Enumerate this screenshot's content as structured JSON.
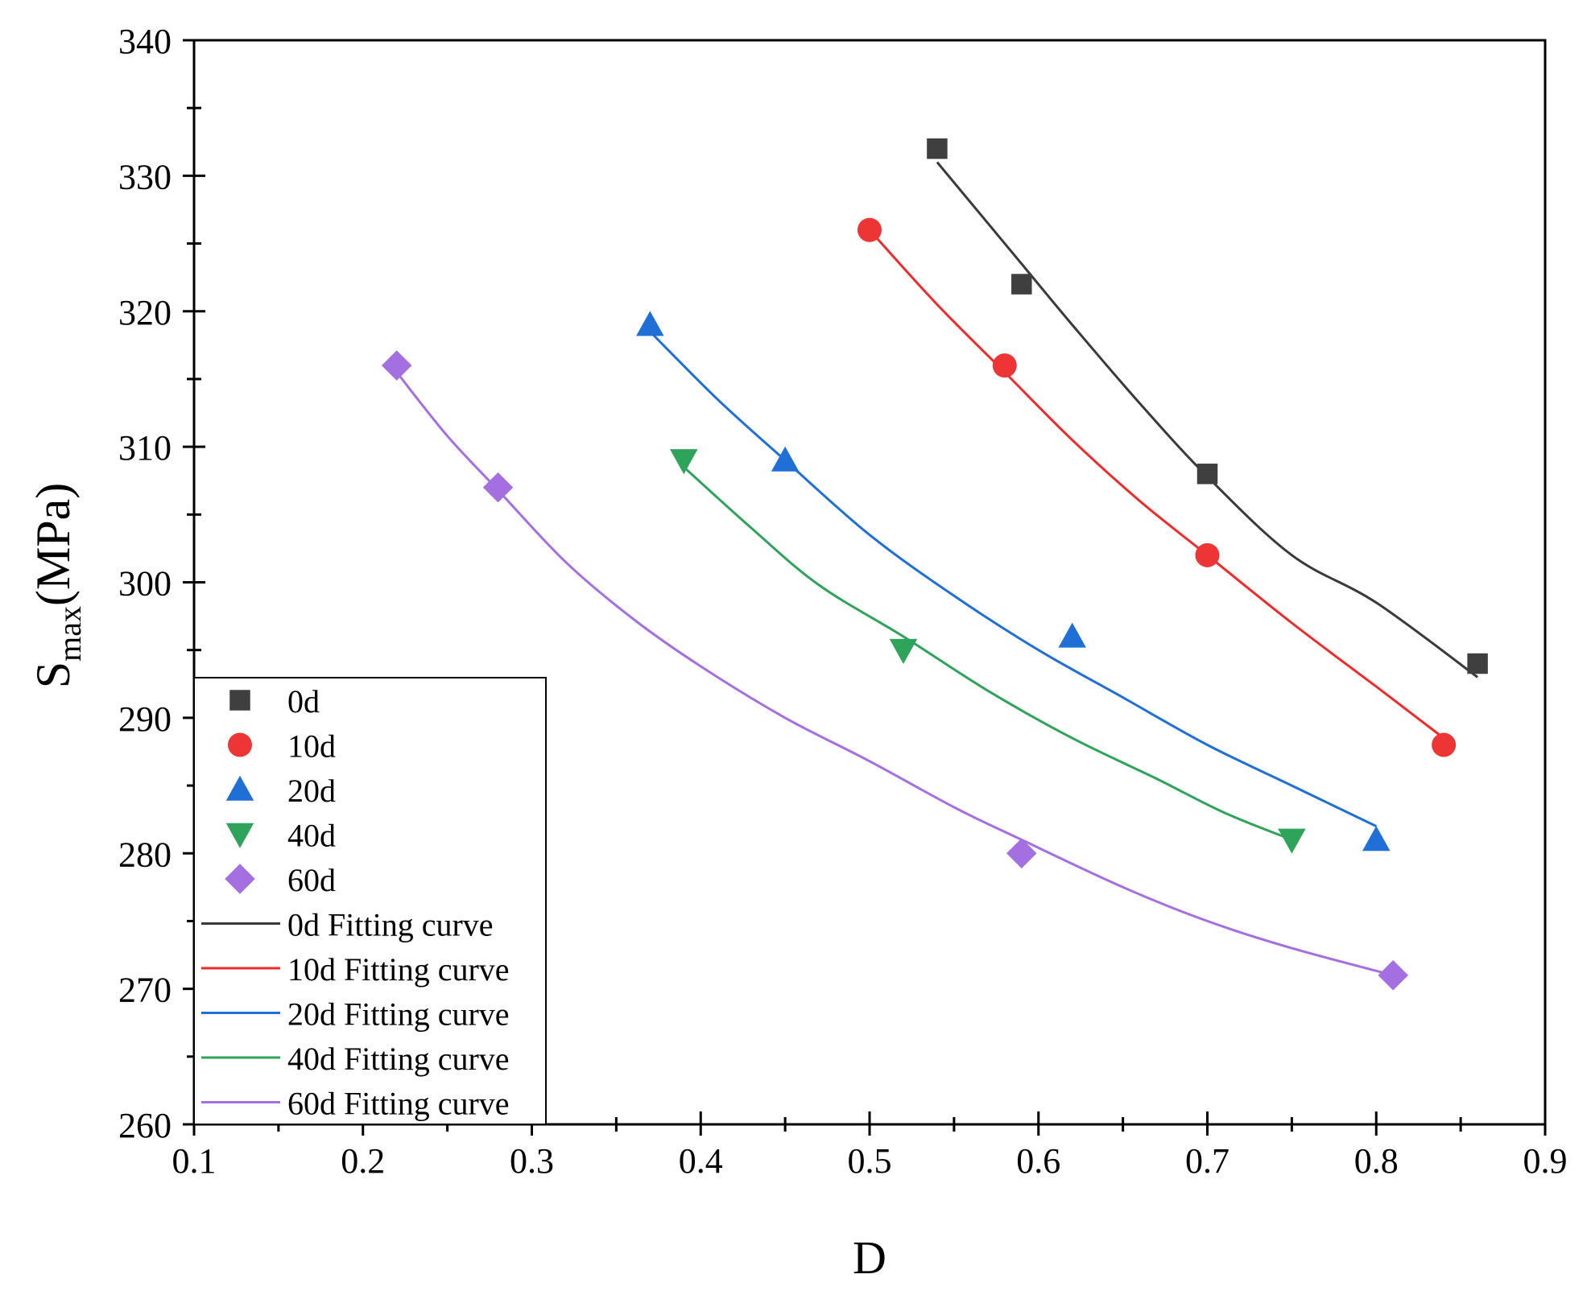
{
  "chart_data": {
    "type": "scatter",
    "title": "",
    "xlabel": "D",
    "ylabel": {
      "main": "S",
      "subscript": "max",
      "unit": "(MPa)"
    },
    "xlim": [
      0.1,
      0.9
    ],
    "ylim": [
      260,
      340
    ],
    "xticks": [
      "0.1",
      "0.2",
      "0.3",
      "0.4",
      "0.5",
      "0.6",
      "0.7",
      "0.8",
      "0.9"
    ],
    "yticks": [
      "260",
      "270",
      "280",
      "290",
      "300",
      "310",
      "320",
      "330",
      "340"
    ],
    "legend_position": "bottom-left",
    "series": [
      {
        "name": "0d",
        "fit_name": "0d Fitting curve",
        "color": "#3f3f3f",
        "line_color": "#3a3a3a",
        "marker": "square",
        "x": [
          0.54,
          0.59,
          0.7,
          0.86
        ],
        "y": [
          332,
          322,
          308,
          294
        ],
        "fit": {
          "x": [
            0.54,
            0.59,
            0.62,
            0.66,
            0.7,
            0.75,
            0.8,
            0.86
          ],
          "y": [
            331,
            323.5,
            319,
            313.2,
            307.8,
            302,
            298.5,
            293
          ]
        }
      },
      {
        "name": "10d",
        "fit_name": "10d Fitting curve",
        "color": "#ee3535",
        "line_color": "#ee2a2a",
        "marker": "circle",
        "x": [
          0.5,
          0.58,
          0.7,
          0.84
        ],
        "y": [
          326,
          316,
          302,
          288
        ],
        "fit": {
          "x": [
            0.5,
            0.54,
            0.58,
            0.62,
            0.66,
            0.7,
            0.75,
            0.8,
            0.84
          ],
          "y": [
            326,
            320.5,
            315.5,
            310.5,
            306,
            302,
            297,
            292.3,
            288.5
          ]
        }
      },
      {
        "name": "20d",
        "fit_name": "20d Fitting curve",
        "color": "#1f6fd6",
        "line_color": "#1f6fd6",
        "marker": "triangle-up",
        "x": [
          0.37,
          0.45,
          0.62,
          0.8
        ],
        "y": [
          319,
          309,
          296,
          281
        ],
        "fit": {
          "x": [
            0.37,
            0.41,
            0.45,
            0.5,
            0.55,
            0.6,
            0.65,
            0.7,
            0.75,
            0.8
          ],
          "y": [
            318.5,
            313.5,
            309,
            303.5,
            299,
            295,
            291.5,
            288,
            285,
            282
          ]
        }
      },
      {
        "name": "40d",
        "fit_name": "40d Fitting curve",
        "color": "#2ea35a",
        "line_color": "#2ea35a",
        "marker": "triangle-down",
        "x": [
          0.39,
          0.52,
          0.75
        ],
        "y": [
          309,
          295,
          281
        ],
        "fit": {
          "x": [
            0.39,
            0.43,
            0.47,
            0.52,
            0.57,
            0.62,
            0.67,
            0.71,
            0.75
          ],
          "y": [
            308.5,
            304,
            299.8,
            296,
            292,
            288.5,
            285.5,
            283,
            281
          ]
        }
      },
      {
        "name": "60d",
        "fit_name": "60d Fitting curve",
        "color": "#a46fe0",
        "line_color": "#a46fe0",
        "marker": "diamond",
        "x": [
          0.22,
          0.28,
          0.59,
          0.81
        ],
        "y": [
          316,
          307,
          280,
          271
        ],
        "fit": {
          "x": [
            0.22,
            0.25,
            0.28,
            0.32,
            0.36,
            0.4,
            0.45,
            0.5,
            0.55,
            0.59,
            0.65,
            0.7,
            0.75,
            0.81
          ],
          "y": [
            315.5,
            310.8,
            306.8,
            301.5,
            297.3,
            293.8,
            290,
            286.8,
            283.4,
            281,
            277.5,
            275,
            273,
            271
          ]
        }
      }
    ]
  }
}
